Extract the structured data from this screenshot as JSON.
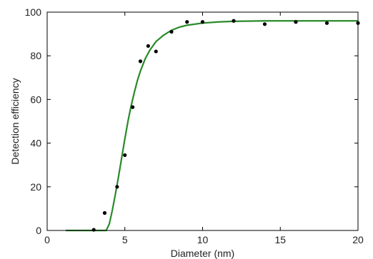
{
  "chart_data": {
    "type": "scatter",
    "title": "",
    "xlabel": "Diameter (nm)",
    "ylabel": "Detection efficiency",
    "xlim": [
      0,
      20
    ],
    "ylim": [
      0,
      100
    ],
    "x_ticks": [
      0,
      5,
      10,
      15,
      20
    ],
    "y_ticks": [
      0,
      20,
      40,
      60,
      80,
      100
    ],
    "x_tick_labels": [
      "0",
      "5",
      "10",
      "15",
      "20"
    ],
    "y_tick_labels": [
      "0",
      "20",
      "40",
      "60",
      "80",
      "100"
    ],
    "grid": false,
    "series": [
      {
        "kind": "markers",
        "color": "#000000",
        "x": [
          3.0,
          3.7,
          4.5,
          5.0,
          5.5,
          6.0,
          6.5,
          7.0,
          8.0,
          9.0,
          10.0,
          12.0,
          14.0,
          16.0,
          18.0,
          20.0
        ],
        "y": [
          0.3,
          8.0,
          20.0,
          34.5,
          56.5,
          77.5,
          84.5,
          82.0,
          91.0,
          95.5,
          95.5,
          96.0,
          94.5,
          95.5,
          95.0,
          95.0
        ]
      },
      {
        "kind": "fit-line",
        "color": "#2a8a2a",
        "x": [
          1.2,
          2.0,
          3.0,
          3.5,
          3.8,
          4.0,
          4.2,
          4.4,
          4.6,
          4.8,
          5.0,
          5.2,
          5.4,
          5.6,
          5.8,
          6.0,
          6.3,
          6.6,
          7.0,
          7.5,
          8.0,
          8.5,
          9.0,
          10.0,
          11.0,
          12.0,
          14.0,
          16.0,
          18.0,
          20.0
        ],
        "y": [
          0,
          0,
          0,
          0,
          0,
          3.0,
          9.5,
          17.0,
          25.0,
          33.5,
          42.0,
          50.0,
          57.0,
          63.0,
          68.5,
          73.0,
          78.5,
          82.5,
          86.5,
          89.5,
          91.7,
          93.1,
          94.0,
          95.0,
          95.5,
          95.8,
          96.0,
          96.0,
          96.0,
          96.0
        ]
      }
    ]
  }
}
